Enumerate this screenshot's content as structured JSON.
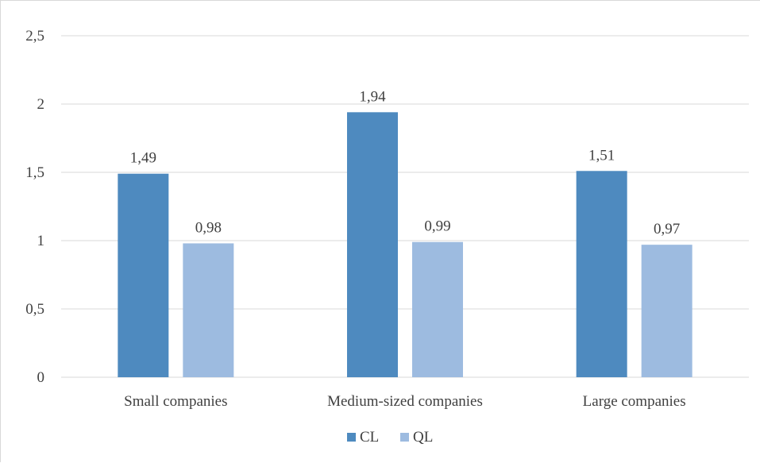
{
  "chart_data": {
    "type": "bar",
    "categories": [
      "Small companies",
      "Medium-sized companies",
      "Large companies"
    ],
    "series": [
      {
        "name": "CL",
        "values": [
          1.49,
          1.94,
          1.51
        ],
        "labels": [
          "1,49",
          "1,94",
          "1,51"
        ],
        "color": "#4e8abf"
      },
      {
        "name": "QL",
        "values": [
          0.98,
          0.99,
          0.97
        ],
        "labels": [
          "0,98",
          "0,99",
          "0,97"
        ],
        "color": "#9dbbe0"
      }
    ],
    "ylim": [
      0,
      2.5
    ],
    "yticks": [
      0,
      0.5,
      1,
      1.5,
      2,
      2.5
    ],
    "ytick_labels": [
      "0",
      "0,5",
      "1",
      "1,5",
      "2",
      "2,5"
    ],
    "grid": true,
    "legend": "bottom-center",
    "title": "",
    "xlabel": "",
    "ylabel": ""
  }
}
